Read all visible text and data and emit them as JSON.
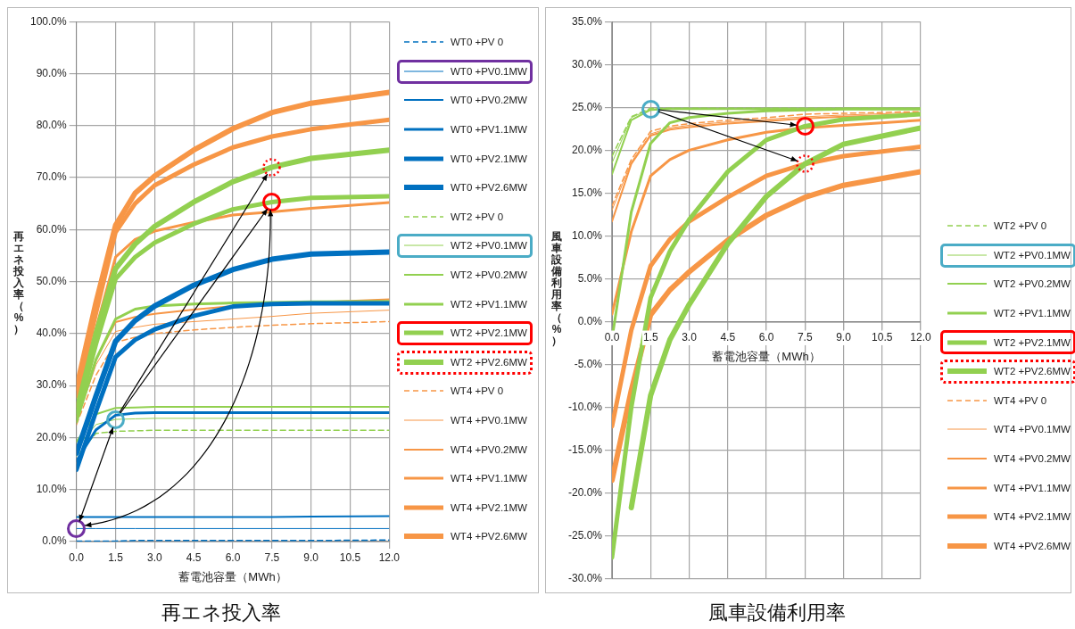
{
  "chart_data": [
    {
      "type": "line",
      "title": "再エネ投入率",
      "xlabel": "蓄電池容量（MWh）",
      "ylabel": "再エネ投入率（%）",
      "x": [
        0,
        0.75,
        1.5,
        2.25,
        3,
        4.5,
        6,
        7.5,
        9,
        12
      ],
      "xlim": [
        0,
        12
      ],
      "xticks": [
        {
          "value": 0,
          "label": "0.0"
        },
        {
          "value": 1.5,
          "label": "1.5"
        },
        {
          "value": 3,
          "label": "3.0"
        },
        {
          "value": 4.5,
          "label": "4.5"
        },
        {
          "value": 6,
          "label": "6.0"
        },
        {
          "value": 7.5,
          "label": "7.5"
        },
        {
          "value": 9,
          "label": "9.0"
        },
        {
          "value": 10.5,
          "label": "10.5"
        },
        {
          "value": 12,
          "label": "12.0"
        }
      ],
      "ylim": [
        0,
        100
      ],
      "yticks": [
        {
          "value": 0,
          "label": "0.0%"
        },
        {
          "value": 10,
          "label": "10.0%"
        },
        {
          "value": 20,
          "label": "20.0%"
        },
        {
          "value": 30,
          "label": "30.0%"
        },
        {
          "value": 40,
          "label": "40.0%"
        },
        {
          "value": 50,
          "label": "50.0%"
        },
        {
          "value": 60,
          "label": "60.0%"
        },
        {
          "value": 70,
          "label": "70.0%"
        },
        {
          "value": 80,
          "label": "80.0%"
        },
        {
          "value": 90,
          "label": "90.0%"
        },
        {
          "value": 100,
          "label": "100.0%"
        }
      ],
      "grid": true,
      "legend": "right",
      "marker": "none",
      "series": [
        {
          "name": "WT0 +PV 0",
          "color": "#0070c0",
          "line_style": "dashed",
          "values": [
            0.1,
            0.1,
            0.1,
            0.2,
            0.2,
            0.2,
            0.2,
            0.2,
            0.2,
            0.3
          ]
        },
        {
          "name": "WT0 +PV0.1MW",
          "color": "#0070c0",
          "line_style": "solid",
          "values": [
            2.5,
            2.5,
            2.5,
            2.5,
            2.5,
            2.5,
            2.5,
            2.5,
            2.5,
            2.5
          ]
        },
        {
          "name": "WT0 +PV0.2MW",
          "color": "#0070c0",
          "line_style": "solid",
          "values": [
            4.7,
            4.7,
            4.7,
            4.7,
            4.7,
            4.7,
            4.7,
            4.7,
            4.8,
            4.9
          ]
        },
        {
          "name": "WT0 +PV1.1MW",
          "color": "#0070c0",
          "line_style": "solid",
          "values": [
            15.5,
            21.5,
            24.3,
            24.7,
            24.8,
            24.8,
            24.8,
            24.8,
            24.8,
            24.8
          ]
        },
        {
          "name": "WT0 +PV2.1MW",
          "color": "#0070c0",
          "line_style": "solid",
          "values": [
            13.8,
            25,
            35.5,
            38.8,
            40.8,
            43.4,
            45.2,
            45.7,
            45.8,
            45.8
          ]
        },
        {
          "name": "WT0 +PV2.6MW",
          "color": "#0070c0",
          "line_style": "solid",
          "values": [
            17,
            28,
            38.5,
            42.5,
            45.3,
            49.3,
            52.3,
            54.3,
            55.3,
            55.7
          ]
        },
        {
          "name": "WT2 +PV 0",
          "color": "#92d050",
          "line_style": "dashed",
          "values": [
            16.5,
            20.8,
            21.2,
            21.3,
            21.4,
            21.4,
            21.4,
            21.4,
            21.4,
            21.4
          ]
        },
        {
          "name": "WT2 +PV0.1MW",
          "color": "#92d050",
          "line_style": "solid",
          "values": [
            18,
            22.5,
            23.5,
            23.6,
            23.7,
            23.7,
            23.7,
            23.7,
            23.7,
            23.7
          ]
        },
        {
          "name": "WT2 +PV0.2MW",
          "color": "#92d050",
          "line_style": "solid",
          "values": [
            19.2,
            24.5,
            25.7,
            25.8,
            25.9,
            25.9,
            25.9,
            25.9,
            25.9,
            25.9
          ]
        },
        {
          "name": "WT2 +PV1.1MW",
          "color": "#92d050",
          "line_style": "solid",
          "values": [
            23,
            35,
            42.8,
            44.7,
            45.3,
            45.7,
            45.9,
            46,
            46.1,
            46.2
          ]
        },
        {
          "name": "WT2 +PV2.1MW",
          "color": "#92d050",
          "line_style": "solid",
          "values": [
            24,
            38,
            50.5,
            54.7,
            57.5,
            61.1,
            63.9,
            65.3,
            66.1,
            66.4
          ]
        },
        {
          "name": "WT2 +PV2.6MW",
          "color": "#92d050",
          "line_style": "solid",
          "values": [
            25,
            40,
            52.5,
            57.2,
            60.6,
            65.3,
            69.2,
            72,
            73.7,
            75.3
          ]
        },
        {
          "name": "WT4 +PV 0",
          "color": "#f79646",
          "line_style": "dashed",
          "values": [
            22.5,
            32,
            38.3,
            39.3,
            40,
            40.7,
            41.2,
            41.6,
            41.9,
            42.3
          ]
        },
        {
          "name": "WT4 +PV0.1MW",
          "color": "#f79646",
          "line_style": "solid",
          "values": [
            23,
            34,
            40.4,
            41.2,
            41.8,
            42.3,
            42.8,
            43.3,
            43.9,
            44.5
          ]
        },
        {
          "name": "WT4 +PV0.2MW",
          "color": "#f79646",
          "line_style": "solid",
          "values": [
            24,
            35,
            42.2,
            43.2,
            43.8,
            44.6,
            45.3,
            45.7,
            46,
            46.6
          ]
        },
        {
          "name": "WT4 +PV1.1MW",
          "color": "#f79646",
          "line_style": "solid",
          "values": [
            26,
            41,
            54.7,
            58.1,
            59.7,
            61.4,
            62.8,
            63.4,
            64.1,
            65.2
          ]
        },
        {
          "name": "WT4 +PV2.1MW",
          "color": "#f79646",
          "line_style": "solid",
          "values": [
            28,
            44,
            59.5,
            65,
            68.5,
            72.5,
            75.8,
            77.9,
            79.3,
            81.1
          ]
        },
        {
          "name": "WT4 +PV2.6MW",
          "color": "#f79646",
          "line_style": "solid",
          "values": [
            29.5,
            46,
            60.8,
            67,
            70.3,
            75.3,
            79.4,
            82.5,
            84.3,
            86.4
          ]
        }
      ]
    },
    {
      "type": "line",
      "title": "風車設備利用率",
      "xlabel": "蓄電池容量（MWh）",
      "ylabel": "風車設備利用率（%）",
      "x": [
        0,
        0.75,
        1.5,
        2.25,
        3,
        4.5,
        6,
        7.5,
        9,
        12
      ],
      "xlim": [
        0,
        12
      ],
      "xticks": [
        {
          "value": 0,
          "label": "0.0"
        },
        {
          "value": 1.5,
          "label": "1.5"
        },
        {
          "value": 3,
          "label": "3.0"
        },
        {
          "value": 4.5,
          "label": "4.5"
        },
        {
          "value": 6,
          "label": "6.0"
        },
        {
          "value": 7.5,
          "label": "7.5"
        },
        {
          "value": 9,
          "label": "9.0"
        },
        {
          "value": 10.5,
          "label": "10.5"
        },
        {
          "value": 12,
          "label": "12.0"
        }
      ],
      "ylim": [
        -30,
        35
      ],
      "yticks": [
        {
          "value": -30,
          "label": "-30.0%"
        },
        {
          "value": -25,
          "label": "-25.0%"
        },
        {
          "value": -20,
          "label": "-20.0%"
        },
        {
          "value": -15,
          "label": "-15.0%"
        },
        {
          "value": -10,
          "label": "-10.0%"
        },
        {
          "value": -5,
          "label": "-5.0%"
        },
        {
          "value": 0,
          "label": "0.0%"
        },
        {
          "value": 5,
          "label": "5.0%"
        },
        {
          "value": 10,
          "label": "10.0%"
        },
        {
          "value": 15,
          "label": "15.0%"
        },
        {
          "value": 20,
          "label": "20.0%"
        },
        {
          "value": 25,
          "label": "25.0%"
        },
        {
          "value": 30,
          "label": "30.0%"
        },
        {
          "value": 35,
          "label": "35.0%"
        }
      ],
      "grid": true,
      "legend": "right",
      "marker": "none",
      "series": [
        {
          "name": "WT2 +PV 0",
          "color": "#92d050",
          "line_style": "dashed",
          "values": [
            19.3,
            23.9,
            24.9,
            24.9,
            24.9,
            24.9,
            24.9,
            24.9,
            24.9,
            24.9
          ]
        },
        {
          "name": "WT2 +PV0.1MW",
          "color": "#92d050",
          "line_style": "solid",
          "values": [
            18.5,
            23.8,
            24.8,
            24.9,
            24.9,
            24.9,
            24.9,
            24.9,
            24.9,
            24.9
          ]
        },
        {
          "name": "WT2 +PV0.2MW",
          "color": "#92d050",
          "line_style": "solid",
          "values": [
            17.2,
            23.5,
            24.7,
            24.8,
            24.8,
            24.8,
            24.8,
            24.8,
            24.8,
            24.8
          ]
        },
        {
          "name": "WT2 +PV1.1MW",
          "color": "#92d050",
          "line_style": "solid",
          "values": [
            -2,
            12.8,
            20.8,
            23.2,
            23.8,
            24.3,
            24.6,
            24.7,
            24.8,
            24.8
          ]
        },
        {
          "name": "WT2 +PV2.1MW",
          "color": "#92d050",
          "line_style": "solid",
          "values": [
            -27.5,
            -10,
            2.8,
            8.2,
            11.9,
            17.5,
            21.2,
            22.8,
            23.6,
            24.2
          ]
        },
        {
          "name": "WT2 +PV2.6MW",
          "color": "#92d050",
          "line_style": "solid",
          "values": [
            null,
            -21.7,
            -8.6,
            -2.1,
            2,
            9.1,
            14.6,
            18.4,
            20.7,
            22.6
          ]
        },
        {
          "name": "WT4 +PV 0",
          "color": "#f79646",
          "line_style": "dashed",
          "values": [
            13.5,
            18.9,
            22.2,
            22.8,
            23.1,
            23.5,
            23.8,
            24.2,
            24.3,
            24.5
          ]
        },
        {
          "name": "WT4 +PV0.1MW",
          "color": "#f79646",
          "line_style": "solid",
          "values": [
            13,
            18.6,
            21.9,
            22.6,
            22.9,
            23.3,
            23.6,
            23.9,
            24.1,
            24.4
          ]
        },
        {
          "name": "WT4 +PV0.2MW",
          "color": "#f79646",
          "line_style": "solid",
          "values": [
            11.7,
            18.4,
            21.7,
            22.4,
            22.7,
            23.1,
            23.4,
            23.7,
            23.9,
            24.2
          ]
        },
        {
          "name": "WT4 +PV1.1MW",
          "color": "#f79646",
          "line_style": "solid",
          "values": [
            0.9,
            10.5,
            17,
            18.9,
            20,
            21.2,
            22.1,
            22.6,
            22.9,
            23.5
          ]
        },
        {
          "name": "WT4 +PV2.1MW",
          "color": "#f79646",
          "line_style": "solid",
          "values": [
            -12.2,
            -1,
            6.5,
            9.6,
            11.7,
            14.5,
            17,
            18.4,
            19.3,
            20.4
          ]
        },
        {
          "name": "WT4 +PV2.6MW",
          "color": "#f79646",
          "line_style": "solid",
          "values": [
            -18.5,
            -8,
            0.8,
            3.7,
            5.8,
            9.5,
            12.4,
            14.5,
            15.9,
            17.5
          ]
        }
      ]
    }
  ]
}
